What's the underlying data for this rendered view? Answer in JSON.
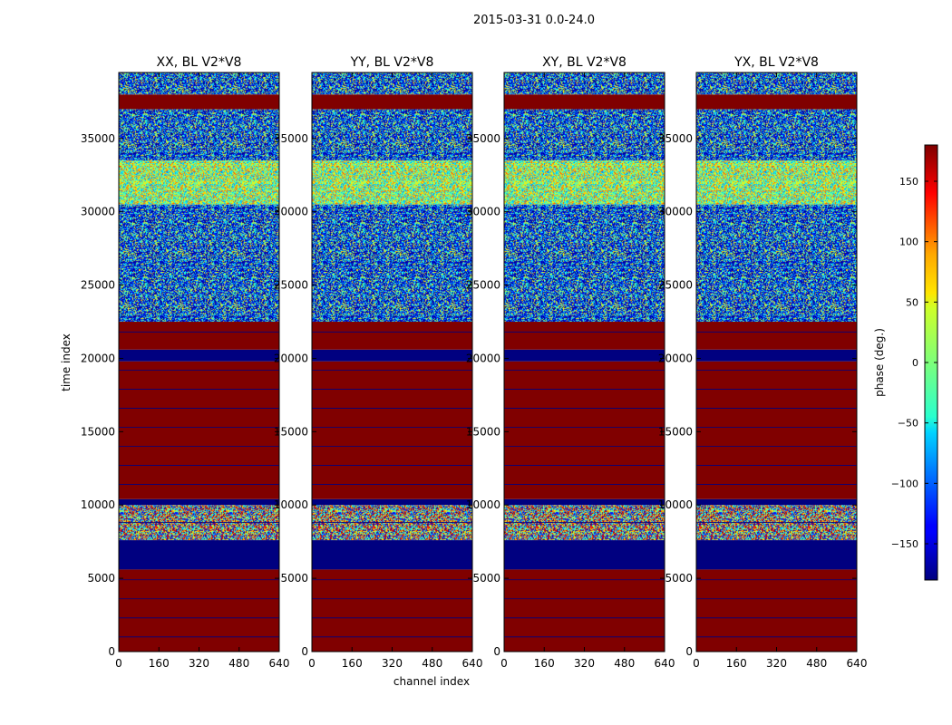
{
  "chart_data": {
    "type": "heatmap",
    "title": "2015-03-31 0.0-24.0",
    "xlabel": "channel index",
    "ylabel": "time index",
    "xlim": [
      0,
      640
    ],
    "ylim": [
      0,
      39500
    ],
    "x_ticks": [
      0,
      160,
      320,
      480,
      640
    ],
    "y_ticks": [
      0,
      5000,
      10000,
      15000,
      20000,
      25000,
      30000,
      35000
    ],
    "panels": [
      {
        "title": "XX, BL V2*V8"
      },
      {
        "title": "YY, BL V2*V8"
      },
      {
        "title": "XY, BL V2*V8"
      },
      {
        "title": "YX, BL V2*V8"
      }
    ],
    "colorbar": {
      "label": "phase (deg.)",
      "range": [
        -180,
        180
      ],
      "ticks": [
        -150,
        -100,
        -50,
        0,
        50,
        100,
        150
      ],
      "ticklabels": [
        "−150",
        "−100",
        "−50",
        "0",
        "50",
        "100",
        "150"
      ]
    },
    "bands_description": [
      {
        "from": 0,
        "to": 5600,
        "value": 180,
        "kind": "flat"
      },
      {
        "from": 5600,
        "to": 7600,
        "value": -180,
        "kind": "flat"
      },
      {
        "from": 7600,
        "to": 10000,
        "kind": "noisy"
      },
      {
        "from": 10000,
        "to": 10400,
        "value": -180,
        "kind": "flat"
      },
      {
        "from": 10400,
        "to": 19800,
        "value": 180,
        "kind": "flat"
      },
      {
        "from": 19800,
        "to": 20600,
        "value": -180,
        "kind": "flat"
      },
      {
        "from": 20600,
        "to": 22500,
        "value": 180,
        "kind": "flat"
      },
      {
        "from": 22500,
        "to": 30500,
        "kind": "noisy"
      },
      {
        "from": 30500,
        "to": 33500,
        "kind": "striped"
      },
      {
        "from": 33500,
        "to": 37000,
        "kind": "noisy"
      },
      {
        "from": 37000,
        "to": 38000,
        "value": 180,
        "kind": "flat"
      },
      {
        "from": 38000,
        "to": 39500,
        "kind": "noisy"
      }
    ]
  }
}
